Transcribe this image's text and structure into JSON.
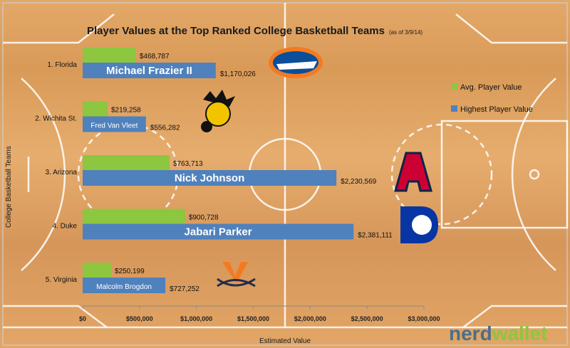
{
  "chart_data": {
    "type": "bar",
    "orientation": "horizontal",
    "title": "Player Values at the Top Ranked College Basketball Teams",
    "subtitle": "(as of 3/9/14)",
    "xlabel": "Estimated Value",
    "ylabel": "College Basketball Teams",
    "xlim": [
      0,
      3000000
    ],
    "x_ticks": [
      "$0",
      "$500,000",
      "$1,000,000",
      "$1,500,000",
      "$2,000,000",
      "$2,500,000",
      "$3,000,000"
    ],
    "x_tick_values": [
      0,
      500000,
      1000000,
      1500000,
      2000000,
      2500000,
      3000000
    ],
    "grid": false,
    "legend_position": "right",
    "categories": [
      "1. Florida",
      "2. Wichita St.",
      "3. Arizona",
      "4. Duke",
      "5. Virginia"
    ],
    "series": [
      {
        "name": "Avg. Player Value",
        "color": "#8dc63f",
        "values": [
          468787,
          219258,
          763713,
          900728,
          250199
        ],
        "labels": [
          "$468,787",
          "$219,258",
          "$763,713",
          "$900,728",
          "$250,199"
        ]
      },
      {
        "name": "Highest Player Value",
        "color": "#4f81bd",
        "values": [
          1170026,
          556282,
          2230569,
          2381111,
          727252
        ],
        "labels": [
          "$1,170,026",
          "$556,282",
          "$2,230,569",
          "$2,381,111",
          "$727,252"
        ],
        "players": [
          "Michael Frazier II",
          "Fred Van Vleet",
          "Nick Johnson",
          "Jabari Parker",
          "Malcolm Brogdon"
        ]
      }
    ],
    "team_logos": [
      "florida-gator-logo",
      "wichita-state-shocker-logo",
      "arizona-a-logo",
      "duke-blue-devil-logo",
      "virginia-v-sabres-logo"
    ]
  },
  "brand": {
    "part1": "nerd",
    "part2": "wallet",
    "color1": "#4a6f8a",
    "color2": "#8dc63f"
  }
}
